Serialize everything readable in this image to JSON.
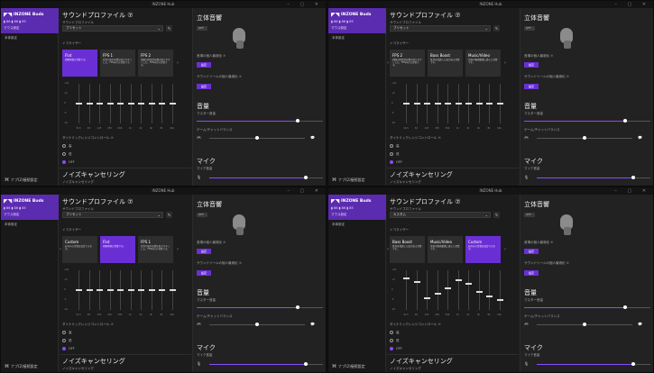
{
  "app_title": "INZONE Hub",
  "device": {
    "name": "INZONE Buds",
    "battery": "▮ 86  ▮ 86  ▮ 85",
    "sub": "マウス設定"
  },
  "sidebar": {
    "item": "本体設定",
    "bottom": "ナブ(2)接続設定"
  },
  "main": {
    "title": "サウンドプロファイル ⑦",
    "profile_label": "サウンドプロファイル",
    "equalizer_label": "イコライザー",
    "dnr_label": "ダイナミックレンジコントロール ⑦",
    "radio_options": [
      "高",
      "低",
      "OFF"
    ],
    "nc_title": "ノイズキャンセリング",
    "nc_sub": "ノイズキャンセリング"
  },
  "eq_bands": [
    "31.5",
    "63",
    "125",
    "250",
    "500",
    "1k",
    "2k",
    "4k",
    "8k",
    "16k"
  ],
  "eq_levels": [
    "+10",
    "+5",
    "0",
    "-5",
    "-10"
  ],
  "right": {
    "spatial_title": "立体音響",
    "toggle": "OFF",
    "personal_label": "音場の個人最適化 ⑦",
    "personal_btn": "設定",
    "earphone_label": "サウンドツールの個人最適化 ⑦",
    "earphone_btn": "設定",
    "volume_title": "音量",
    "master_label": "マスター音量",
    "game_chat_label": "ゲーム/チャットバランス",
    "mic_title": "マイク",
    "mic_label": "マイク音量"
  },
  "windows": [
    {
      "preset": "プリセット",
      "cards": [
        {
          "title": "Flat",
          "desc": "初期状態の音質です。"
        },
        {
          "title": "FPS 1",
          "desc": "足音や銃声を聞き取りやすくした、FPS向けの音質です。"
        },
        {
          "title": "FPS 2",
          "desc": "周囲の環境音を聞き取りやすくした、FPS向けの音質です。"
        }
      ],
      "selected": 0,
      "eq_values": [
        0,
        0,
        0,
        0,
        0,
        0,
        0,
        0,
        0,
        0
      ],
      "radio_selected": 2
    },
    {
      "preset": "プリセット",
      "cards": [
        {
          "title": "FPS 2",
          "desc": "周囲の環境音を聞き取りやすくした、FPS向けの音質です。"
        },
        {
          "title": "Bass Boost",
          "desc": "低音を強調した迫力ある音質です。"
        },
        {
          "title": "Music/Video",
          "desc": "音楽や動画鑑賞に適した音質です。"
        }
      ],
      "selected": -1,
      "eq_values": [
        0,
        0,
        0,
        0,
        0,
        0,
        0,
        0,
        0,
        0
      ],
      "radio_selected": 2
    },
    {
      "preset": "プリセット",
      "cards": [
        {
          "title": "Custom",
          "desc": "お好みの音質を設定できます。"
        },
        {
          "title": "Flat",
          "desc": "初期状態の音質です。"
        },
        {
          "title": "FPS 1",
          "desc": "足音や銃声を聞き取りやすくした、FPS向けの音質です。"
        }
      ],
      "selected": 1,
      "eq_values": [
        0,
        0,
        0,
        0,
        0,
        0,
        0,
        0,
        0,
        0
      ],
      "radio_selected": 2
    },
    {
      "preset": "カスタム",
      "cards": [
        {
          "title": "Bass Boost",
          "desc": "低音を強調した迫力ある音質です。"
        },
        {
          "title": "Music/Video",
          "desc": "音楽や動画鑑賞に適した音質です。"
        },
        {
          "title": "Custom",
          "desc": "お好みの音質を設定できます。"
        }
      ],
      "selected": 2,
      "eq_values": [
        6,
        4,
        -4,
        -2,
        1,
        5,
        3,
        -1,
        -3,
        -5
      ],
      "radio_selected": 2
    }
  ],
  "slider_levels": {
    "master": 0.8,
    "game_chat": 0.5,
    "mic": 0.85
  }
}
